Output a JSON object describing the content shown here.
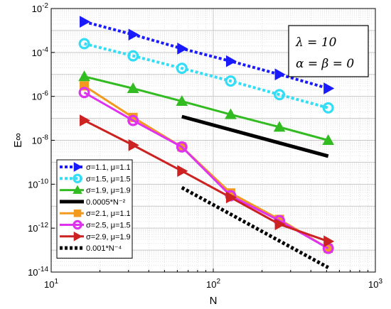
{
  "chart_data": {
    "type": "line",
    "xscale": "log",
    "yscale": "log",
    "xlim": [
      10,
      1000
    ],
    "ylim": [
      1e-14,
      0.01
    ],
    "grid": true,
    "xlabel": "N",
    "ylabel": "E∞",
    "x_ticks": [
      {
        "value": 10,
        "base": "10",
        "exp": "1"
      },
      {
        "value": 100,
        "base": "10",
        "exp": "2"
      },
      {
        "value": 1000,
        "base": "10",
        "exp": "3"
      }
    ],
    "y_ticks": [
      {
        "value": 1e-14,
        "base": "10",
        "exp": "-14"
      },
      {
        "value": 1e-12,
        "base": "10",
        "exp": "-12"
      },
      {
        "value": 1e-10,
        "base": "10",
        "exp": "-10"
      },
      {
        "value": 1e-08,
        "base": "10",
        "exp": "-8"
      },
      {
        "value": 1e-06,
        "base": "10",
        "exp": "-6"
      },
      {
        "value": 0.0001,
        "base": "10",
        "exp": "-4"
      },
      {
        "value": 0.01,
        "base": "10",
        "exp": "-2"
      }
    ],
    "annotation": {
      "line1": "λ = 10",
      "line2": "α = β = 0"
    },
    "legend_position": "bottom-left",
    "series": [
      {
        "name": "σ=1.1, μ=1.1",
        "color": "#1a1aff",
        "style": "dotted",
        "marker": "triangle-right",
        "x": [
          16,
          32,
          64,
          128,
          256,
          512
        ],
        "y": [
          0.0025,
          0.00065,
          0.00015,
          4e-05,
          1e-05,
          2.3e-06
        ]
      },
      {
        "name": "σ=1.5, μ=1.5",
        "color": "#33ddf5",
        "style": "dotted",
        "marker": "circle",
        "x": [
          16,
          32,
          64,
          128,
          256,
          512
        ],
        "y": [
          0.00025,
          7e-05,
          1.9e-05,
          5e-06,
          1.2e-06,
          3e-07
        ]
      },
      {
        "name": "σ=1.9, μ=1.9",
        "color": "#33bb22",
        "style": "solid",
        "marker": "triangle-up",
        "x": [
          16,
          32,
          64,
          128,
          256,
          512
        ],
        "y": [
          8e-06,
          2.3e-06,
          6e-07,
          1.5e-07,
          4e-08,
          1e-08
        ]
      },
      {
        "name": "0.0005*N⁻²",
        "color": "#000000",
        "style": "solid-thick",
        "marker": "none",
        "x": [
          64,
          512
        ],
        "y": [
          1.2e-07,
          1.9e-09
        ]
      },
      {
        "name": "σ=2.1, μ=1.1",
        "color": "#f39a1e",
        "style": "solid",
        "marker": "square",
        "x": [
          16,
          32,
          64,
          128,
          256,
          512
        ],
        "y": [
          3e-06,
          1.1e-07,
          5e-09,
          4e-11,
          2.5e-12,
          1.2e-13
        ]
      },
      {
        "name": "σ=2.5, μ=1.5",
        "color": "#dd33ee",
        "style": "solid",
        "marker": "circle",
        "x": [
          16,
          32,
          64,
          128,
          256,
          512
        ],
        "y": [
          1.5e-06,
          8e-08,
          5e-09,
          3e-11,
          2.2e-12,
          1.2e-13
        ]
      },
      {
        "name": "σ=2.9, μ=1.9",
        "color": "#cc2222",
        "style": "solid",
        "marker": "triangle-right",
        "x": [
          16,
          32,
          64,
          128,
          256,
          512
        ],
        "y": [
          8e-08,
          6e-09,
          4e-10,
          2.5e-11,
          1.5e-12,
          2.5e-13
        ]
      },
      {
        "name": "0.001*N⁻⁴",
        "color": "#000000",
        "style": "dotted-thick",
        "marker": "none",
        "x": [
          64,
          512
        ],
        "y": [
          7e-11,
          1.6e-14
        ]
      }
    ]
  }
}
